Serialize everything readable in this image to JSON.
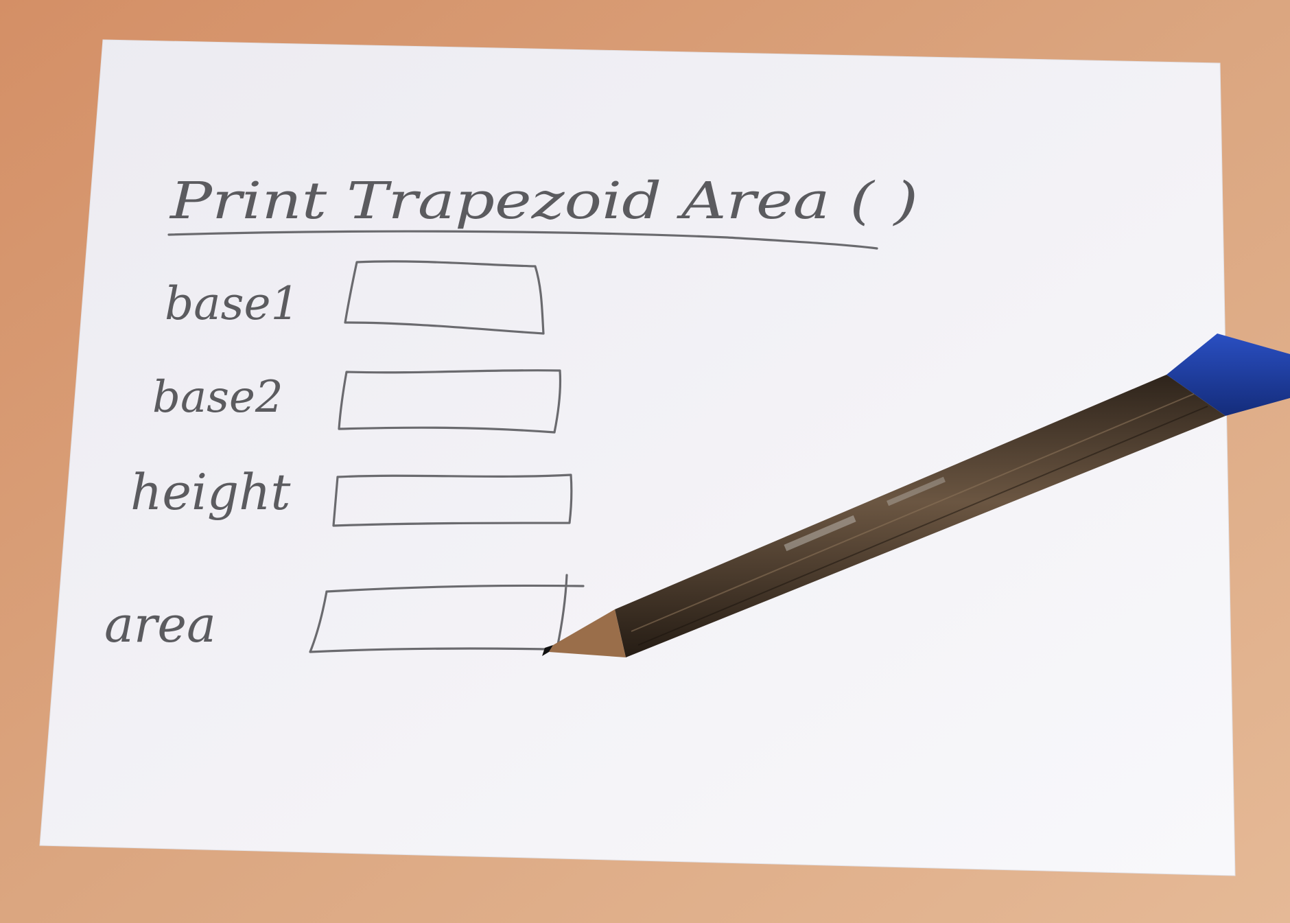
{
  "sketch": {
    "title": "Print Trapezoid Area ( )",
    "fields": [
      {
        "label": "base1",
        "value": ""
      },
      {
        "label": "base2",
        "value": ""
      },
      {
        "label": "height",
        "value": ""
      },
      {
        "label": "area",
        "value": ""
      }
    ]
  },
  "colors": {
    "table": "#d9a27a",
    "paper": "#f3f2f6",
    "pencil_graphite": "#6a6a6e",
    "pencil_body": "#4a3b2c",
    "pencil_cap": "#1d3b9a"
  },
  "icons": [
    "pencil-icon"
  ]
}
